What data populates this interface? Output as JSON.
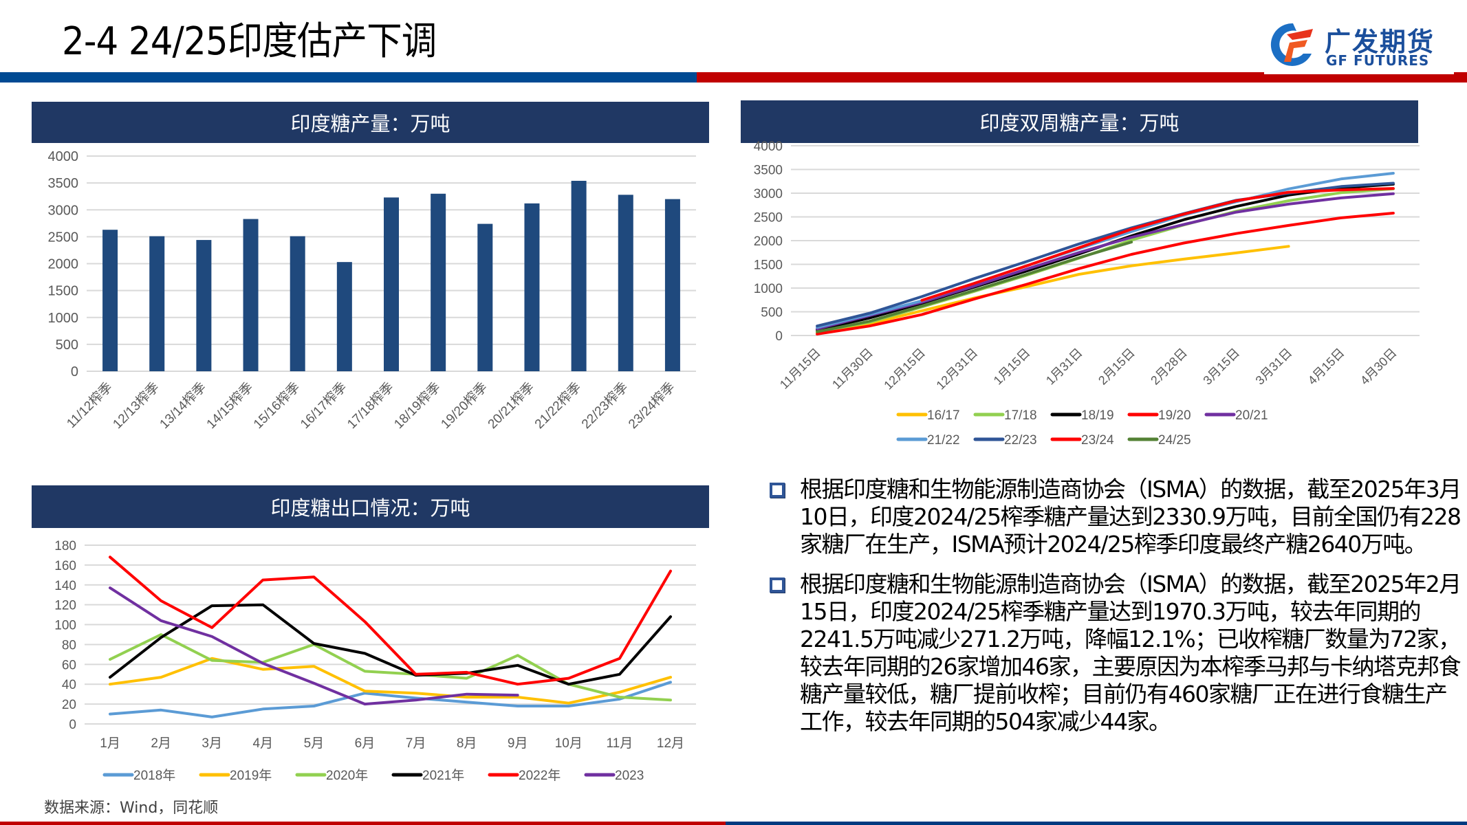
{
  "header": {
    "title": "2-4 24/25印度估产下调",
    "logo_cn": "广发期货",
    "logo_en": "GF FUTURES"
  },
  "colors": {
    "header_blue": "#004a93",
    "header_red": "#c00000",
    "chart_title_bg": "#203864",
    "bar_fill": "#1f497d"
  },
  "chart_data": [
    {
      "id": "india-sugar-production",
      "type": "bar",
      "title": "印度糖产量：万吨",
      "xlabel": "",
      "ylabel": "",
      "ylim": [
        0,
        4000
      ],
      "yticks": [
        0,
        500,
        1000,
        1500,
        2000,
        2500,
        3000,
        3500,
        4000
      ],
      "grid": true,
      "categories": [
        "11/12榨季",
        "12/13榨季",
        "13/14榨季",
        "14/15榨季",
        "15/16榨季",
        "16/17榨季",
        "17/18榨季",
        "18/19榨季",
        "19/20榨季",
        "20/21榨季",
        "21/22榨季",
        "22/23榨季",
        "23/24榨季"
      ],
      "values": [
        2630,
        2510,
        2440,
        2830,
        2510,
        2030,
        3230,
        3300,
        2740,
        3120,
        3540,
        3280,
        3200
      ]
    },
    {
      "id": "india-biweekly-production",
      "type": "line",
      "title": "印度双周糖产量：万吨",
      "ylim": [
        0,
        4000
      ],
      "yticks": [
        0,
        500,
        1000,
        1500,
        2000,
        2500,
        3000,
        3500,
        4000
      ],
      "grid": true,
      "legend_position": "bottom",
      "x": [
        "11月15日",
        "11月30日",
        "12月15日",
        "12月31日",
        "1月15日",
        "1月31日",
        "2月15日",
        "2月28日",
        "3月15日",
        "3月31日",
        "4月15日",
        "4月30日"
      ],
      "series": [
        {
          "name": "16/17",
          "color": "#ffc000",
          "values": [
            60,
            250,
            520,
            790,
            1030,
            1290,
            1470,
            1610,
            1740,
            1880,
            null,
            null
          ]
        },
        {
          "name": "17/18",
          "color": "#92d050",
          "values": [
            80,
            280,
            600,
            930,
            1270,
            1630,
            2010,
            2330,
            2620,
            2840,
            3010,
            3090
          ]
        },
        {
          "name": "18/19",
          "color": "#000000",
          "values": [
            120,
            370,
            680,
            1020,
            1360,
            1720,
            2100,
            2440,
            2720,
            2960,
            3110,
            3190
          ]
        },
        {
          "name": "19/20",
          "color": "#ff0000",
          "values": [
            30,
            200,
            440,
            770,
            1080,
            1410,
            1710,
            1950,
            2150,
            2320,
            2480,
            2580
          ]
        },
        {
          "name": "20/21",
          "color": "#7030a0",
          "values": [
            140,
            420,
            700,
            1040,
            1400,
            1750,
            2070,
            2340,
            2600,
            2770,
            2900,
            2990
          ]
        },
        {
          "name": "21/22",
          "color": "#5b9bd5",
          "values": [
            170,
            440,
            730,
            1100,
            1470,
            1830,
            2190,
            2540,
            2820,
            3090,
            3300,
            3420
          ]
        },
        {
          "name": "22/23",
          "color": "#2f5597",
          "values": [
            200,
            470,
            820,
            1200,
            1560,
            1930,
            2270,
            2570,
            2850,
            3000,
            3140,
            3210
          ]
        },
        {
          "name": "23/24",
          "color": "#ff0000",
          "values": [
            null,
            null,
            740,
            1100,
            1470,
            1850,
            2240,
            2560,
            2840,
            3020,
            3070,
            3100
          ]
        },
        {
          "name": "24/25",
          "color": "#548235",
          "values": [
            80,
            300,
            620,
            950,
            1290,
            1640,
            1970,
            null,
            null,
            null,
            null,
            null
          ]
        }
      ]
    },
    {
      "id": "india-sugar-exports",
      "type": "line",
      "title": "印度糖出口情况：万吨",
      "ylim": [
        0,
        180
      ],
      "yticks": [
        0,
        20,
        40,
        60,
        80,
        100,
        120,
        140,
        160,
        180
      ],
      "grid": true,
      "legend_position": "bottom",
      "x": [
        "1月",
        "2月",
        "3月",
        "4月",
        "5月",
        "6月",
        "7月",
        "8月",
        "9月",
        "10月",
        "11月",
        "12月"
      ],
      "series": [
        {
          "name": "2018年",
          "color": "#5b9bd5",
          "values": [
            10,
            14,
            7,
            15,
            18,
            31,
            26,
            22,
            18,
            18,
            25,
            42
          ]
        },
        {
          "name": "2019年",
          "color": "#ffc000",
          "values": [
            40,
            47,
            66,
            55,
            58,
            33,
            31,
            27,
            27,
            21,
            32,
            47
          ]
        },
        {
          "name": "2020年",
          "color": "#92d050",
          "values": [
            65,
            90,
            64,
            62,
            80,
            53,
            50,
            46,
            69,
            40,
            27,
            24
          ]
        },
        {
          "name": "2021年",
          "color": "#000000",
          "values": [
            47,
            87,
            119,
            120,
            81,
            71,
            49,
            51,
            59,
            40,
            50,
            108
          ]
        },
        {
          "name": "2022年",
          "color": "#ff0000",
          "values": [
            168,
            124,
            97,
            145,
            148,
            103,
            50,
            52,
            40,
            46,
            66,
            154
          ]
        },
        {
          "name": "2023",
          "color": "#7030a0",
          "values": [
            137,
            104,
            88,
            61,
            41,
            20,
            24,
            30,
            29,
            null,
            null,
            null
          ]
        }
      ]
    }
  ],
  "bullets": [
    "根据印度糖和生物能源制造商协会（ISMA）的数据，截至2025年3月10日，印度2024/25榨季糖产量达到2330.9万吨，目前全国仍有228家糖厂在生产，ISMA预计2024/25榨季印度最终产糖2640万吨。",
    "根据印度糖和生物能源制造商协会（ISMA）的数据，截至2025年2月15日，印度2024/25榨季糖产量达到1970.3万吨，较去年同期的2241.5万吨减少271.2万吨，降幅12.1%；已收榨糖厂数量为72家，较去年同期的26家增加46家，主要原因为本榨季马邦与卡纳塔克邦食糖产量较低，糖厂提前收榨；目前仍有460家糖厂正在进行食糖生产工作，较去年同期的504家减少44家。"
  ],
  "footer": {
    "source": "数据来源：Wind，同花顺"
  }
}
